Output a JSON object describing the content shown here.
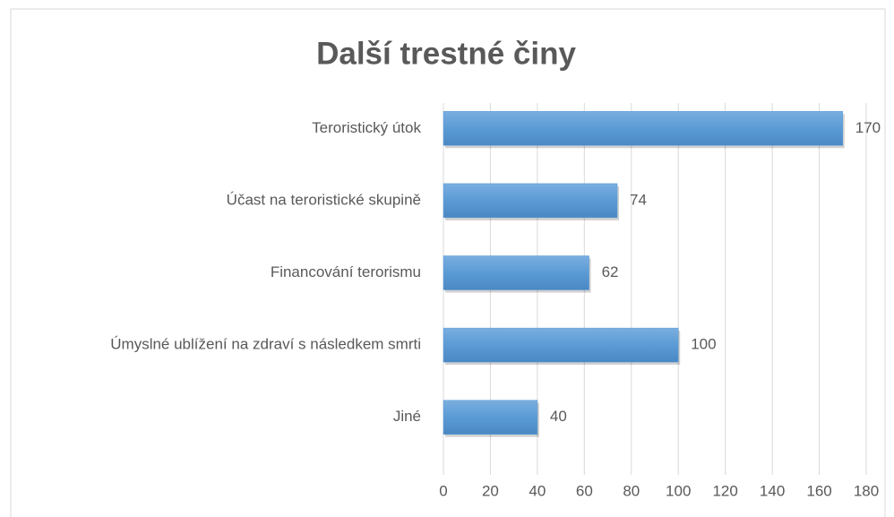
{
  "chart_data": {
    "type": "bar",
    "orientation": "horizontal",
    "title": "Další trestné činy",
    "categories": [
      "Teroristický útok",
      "Účast na teroristické skupině",
      "Financování terorismu",
      "Úmyslné ublížení na zdraví s následkem smrti",
      "Jiné"
    ],
    "values": [
      170,
      74,
      62,
      100,
      40
    ],
    "color": "#5b9bd5",
    "xlim": [
      0,
      180
    ],
    "xticks": [
      0,
      20,
      40,
      60,
      80,
      100,
      120,
      140,
      160,
      180
    ],
    "grid": true
  }
}
